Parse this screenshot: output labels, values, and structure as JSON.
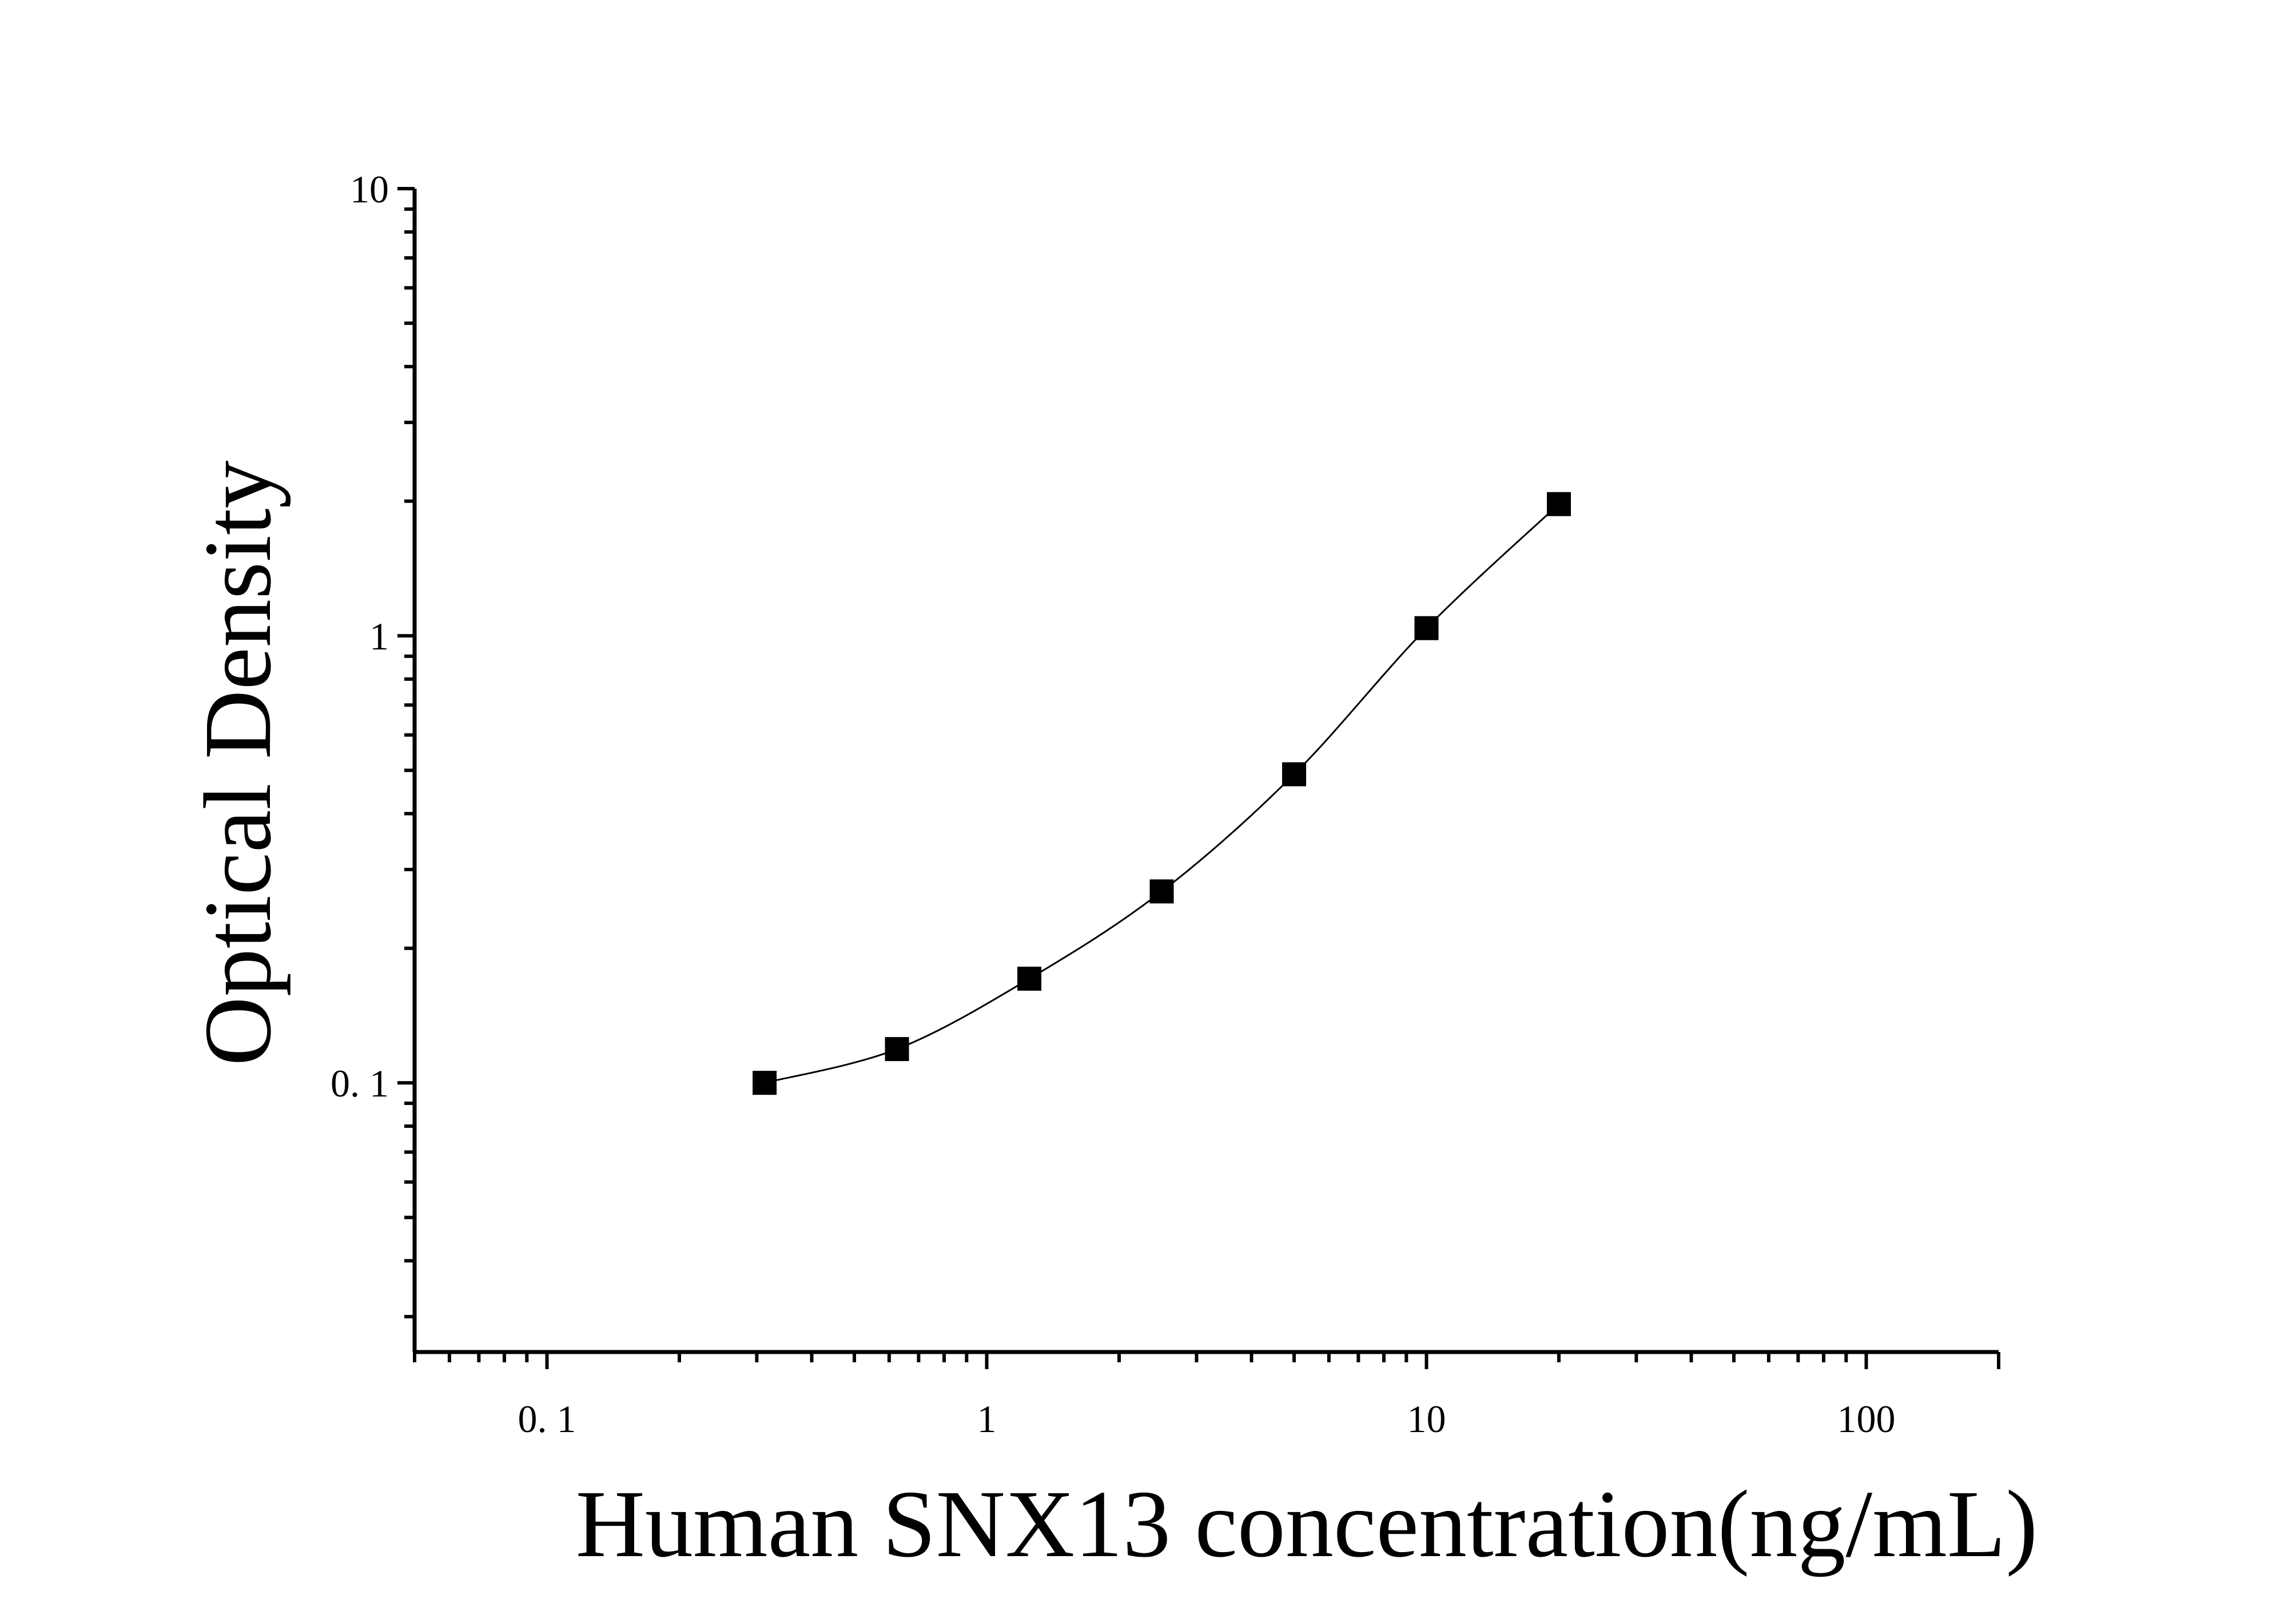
{
  "chart_data": {
    "type": "scatter",
    "title": "",
    "xlabel": "Human SNX13 concentration(ng/mL)",
    "ylabel": "Optical Density",
    "xscale": "log",
    "yscale": "log",
    "xlim": [
      0.05,
      200
    ],
    "ylim": [
      0.025,
      10
    ],
    "xticks": [
      0.1,
      1,
      10,
      100
    ],
    "xtick_labels": [
      "0. 1",
      "1",
      "10",
      "100"
    ],
    "yticks": [
      0.1,
      1,
      10
    ],
    "ytick_labels": [
      "0. 1",
      "1",
      "10"
    ],
    "grid": false,
    "legend": "none",
    "marker": "square",
    "fit_curve": true,
    "colors": {
      "marker": "#000000",
      "curve": "#000000",
      "axis": "#000000"
    },
    "series": [
      {
        "x": [
          0.3125,
          0.625,
          1.25,
          2.5,
          5,
          10,
          20
        ],
        "y": [
          0.1,
          0.119,
          0.171,
          0.268,
          0.49,
          1.04,
          1.97
        ]
      }
    ]
  }
}
